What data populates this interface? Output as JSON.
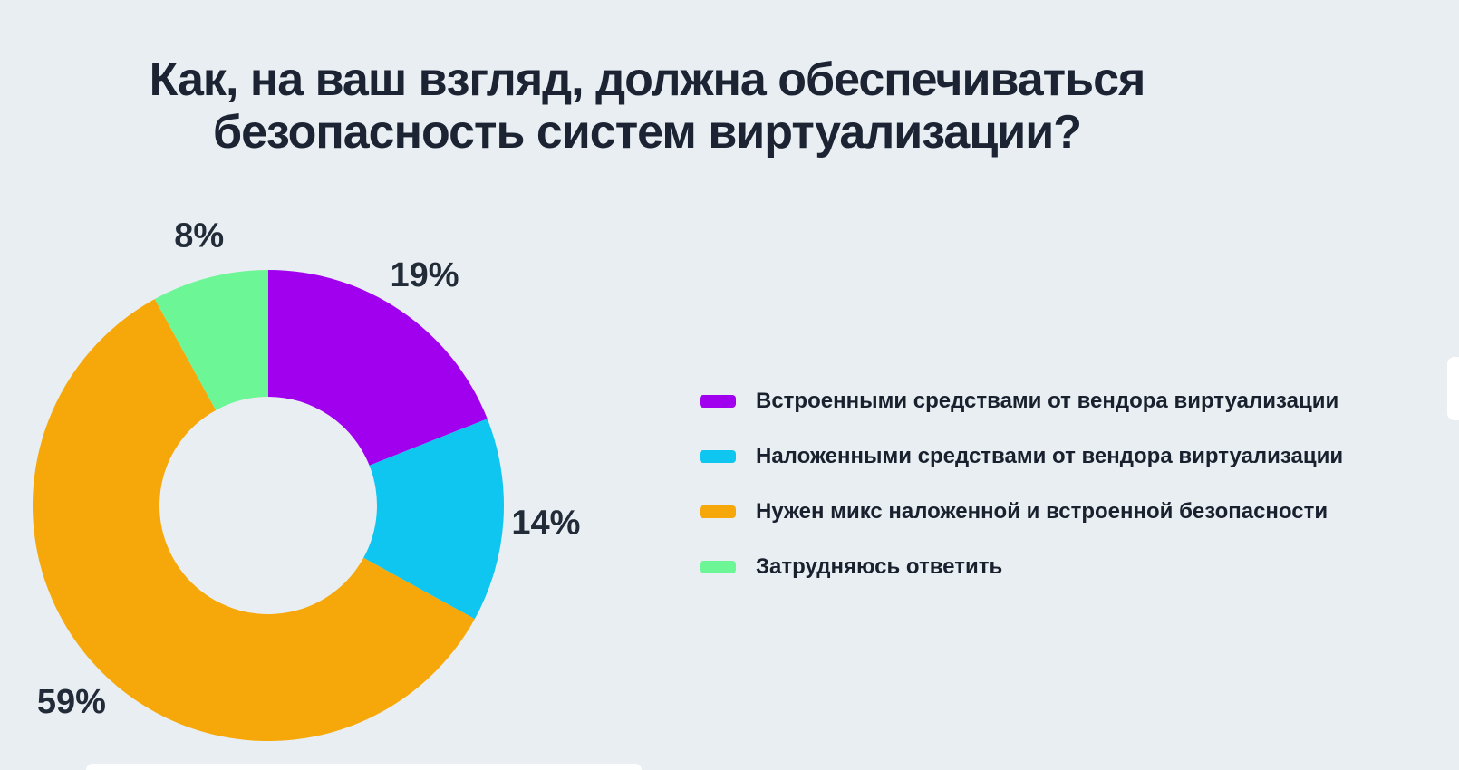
{
  "background": "#E9EEF2",
  "title": {
    "lines": [
      "Как, на ваш взгляд, должна обеспечиваться",
      "безопасность систем виртуализации?"
    ],
    "color": "#1C2433"
  },
  "label_color": "#222B38",
  "chart_data": {
    "type": "pie",
    "subtype": "donut",
    "title": "Как, на ваш взгляд, должна обеспечиваться безопасность систем виртуализации?",
    "unit": "%",
    "direction": "clockwise",
    "start_angle_deg": 0,
    "donut_hole_ratio": 0.46,
    "legend_position": "right",
    "series": [
      {
        "label": "Встроенными средствами от вендора виртуализации",
        "value": 19,
        "color": "#A100EE"
      },
      {
        "label": "Наложенными средствами от вендора виртуализации",
        "value": 14,
        "color": "#0EC6EF"
      },
      {
        "label": "Нужен микс наложенной и встроенной безопасности",
        "value": 59,
        "color": "#F6A80A"
      },
      {
        "label": "Затрудняюсь ответить",
        "value": 8,
        "color": "#6DF696"
      }
    ],
    "data_labels": [
      "19%",
      "14%",
      "59%",
      "8%"
    ]
  }
}
